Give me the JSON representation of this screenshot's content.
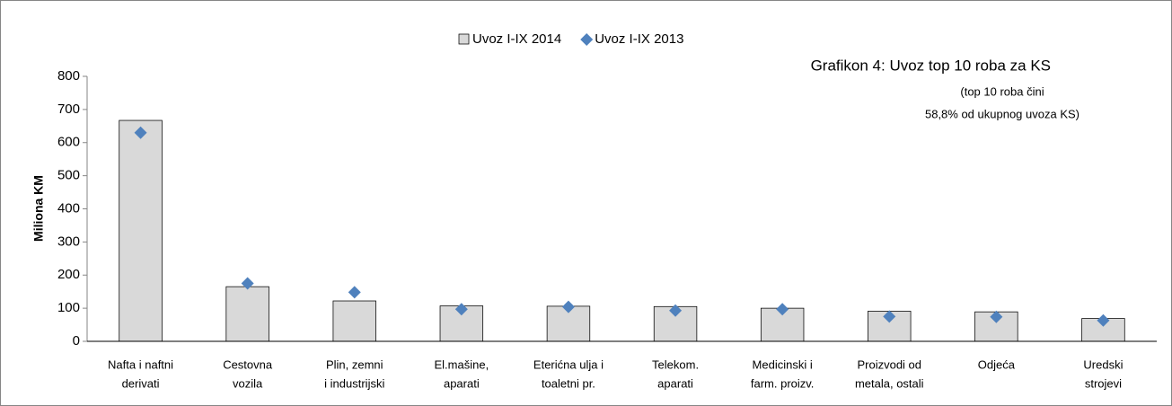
{
  "chart_data": {
    "type": "bar",
    "title": "Grafikon 4: Uvoz top 10 roba za KS",
    "subtitle": [
      "(top 10 roba čini",
      "58,8% od ukupnog uvoza KS)"
    ],
    "y_label": "Miliona KM",
    "categories": [
      [
        "Nafta i naftni",
        "derivati"
      ],
      [
        "Cestovna",
        "vozila"
      ],
      [
        "Plin, zemni",
        "i industrijski"
      ],
      [
        "El.mašine,",
        "aparati"
      ],
      [
        "Eterićna ulja i",
        "toaletni pr."
      ],
      [
        "Telekom.",
        "aparati"
      ],
      [
        "Medicinski i",
        "farm. proizv."
      ],
      [
        "Proizvodi od",
        "metala, ostali"
      ],
      [
        "Odjeća"
      ],
      [
        "Uredski",
        "strojevi"
      ]
    ],
    "series": [
      {
        "name": "Uvoz I-IX 2014",
        "type": "bar",
        "color": "#d9d9d9",
        "values": [
          667,
          165,
          122,
          107,
          106,
          105,
          100,
          91,
          89,
          69
        ]
      },
      {
        "name": "Uvoz I-IX 2013",
        "type": "scatter",
        "color": "#4f81bd",
        "values": [
          630,
          175,
          148,
          97,
          104,
          93,
          97,
          75,
          74,
          63
        ]
      }
    ],
    "ylim": [
      0,
      800
    ],
    "yticks": [
      0,
      100,
      200,
      300,
      400,
      500,
      600,
      700,
      800
    ],
    "grid": false,
    "legend": "top"
  }
}
